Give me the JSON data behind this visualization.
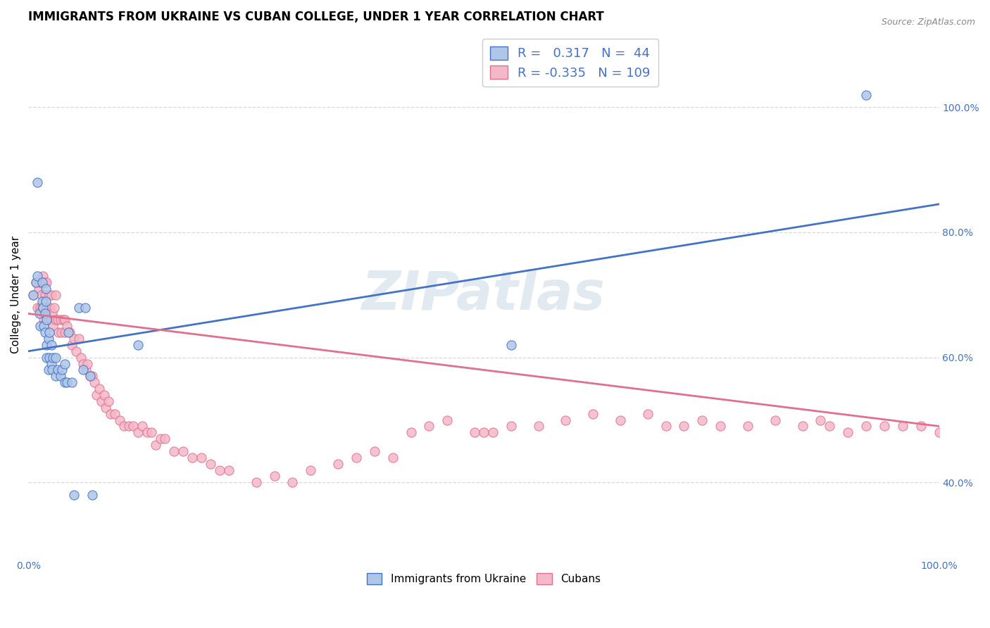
{
  "title": "IMMIGRANTS FROM UKRAINE VS CUBAN COLLEGE, UNDER 1 YEAR CORRELATION CHART",
  "source": "Source: ZipAtlas.com",
  "ylabel": "College, Under 1 year",
  "xlim": [
    0.0,
    1.0
  ],
  "ylim": [
    0.28,
    1.12
  ],
  "x_tick_labels": [
    "0.0%",
    "100.0%"
  ],
  "x_tick_positions": [
    0.0,
    1.0
  ],
  "y_tick_labels": [
    "40.0%",
    "60.0%",
    "80.0%",
    "100.0%"
  ],
  "y_tick_values": [
    0.4,
    0.6,
    0.8,
    1.0
  ],
  "legend_entries": [
    {
      "label": "R =   0.317   N =  44",
      "facecolor": "#aec6e8",
      "edgecolor": "#4472c4"
    },
    {
      "label": "R = -0.335   N = 109",
      "facecolor": "#f4b8c8",
      "edgecolor": "#e07090"
    }
  ],
  "ukraine_color": "#aec6e8",
  "ukraine_edge": "#4472c4",
  "cuba_color": "#f4b8c8",
  "cuba_edge": "#e07090",
  "ukraine_x": [
    0.005,
    0.008,
    0.01,
    0.01,
    0.012,
    0.013,
    0.015,
    0.015,
    0.016,
    0.017,
    0.018,
    0.018,
    0.019,
    0.019,
    0.02,
    0.02,
    0.02,
    0.022,
    0.022,
    0.023,
    0.023,
    0.025,
    0.025,
    0.026,
    0.027,
    0.03,
    0.03,
    0.032,
    0.035,
    0.037,
    0.04,
    0.04,
    0.042,
    0.044,
    0.048,
    0.05,
    0.055,
    0.06,
    0.062,
    0.068,
    0.07,
    0.12,
    0.53,
    0.92
  ],
  "ukraine_y": [
    0.7,
    0.72,
    0.73,
    0.88,
    0.67,
    0.65,
    0.69,
    0.72,
    0.68,
    0.65,
    0.64,
    0.67,
    0.69,
    0.71,
    0.66,
    0.62,
    0.6,
    0.63,
    0.58,
    0.64,
    0.6,
    0.59,
    0.62,
    0.58,
    0.6,
    0.57,
    0.6,
    0.58,
    0.57,
    0.58,
    0.56,
    0.59,
    0.56,
    0.64,
    0.56,
    0.38,
    0.68,
    0.58,
    0.68,
    0.57,
    0.38,
    0.62,
    0.62,
    1.02
  ],
  "cuba_x": [
    0.005,
    0.008,
    0.01,
    0.011,
    0.012,
    0.013,
    0.014,
    0.015,
    0.015,
    0.016,
    0.017,
    0.018,
    0.018,
    0.019,
    0.02,
    0.02,
    0.021,
    0.022,
    0.022,
    0.023,
    0.024,
    0.025,
    0.025,
    0.026,
    0.027,
    0.028,
    0.03,
    0.03,
    0.032,
    0.033,
    0.035,
    0.036,
    0.038,
    0.04,
    0.04,
    0.042,
    0.045,
    0.048,
    0.05,
    0.052,
    0.055,
    0.058,
    0.06,
    0.063,
    0.065,
    0.068,
    0.07,
    0.072,
    0.075,
    0.078,
    0.08,
    0.083,
    0.085,
    0.088,
    0.09,
    0.095,
    0.1,
    0.105,
    0.11,
    0.115,
    0.12,
    0.125,
    0.13,
    0.135,
    0.14,
    0.145,
    0.15,
    0.16,
    0.17,
    0.18,
    0.19,
    0.2,
    0.21,
    0.22,
    0.25,
    0.27,
    0.29,
    0.31,
    0.34,
    0.36,
    0.38,
    0.4,
    0.42,
    0.44,
    0.46,
    0.5,
    0.53,
    0.56,
    0.59,
    0.62,
    0.65,
    0.68,
    0.7,
    0.72,
    0.74,
    0.76,
    0.79,
    0.82,
    0.85,
    0.87,
    0.88,
    0.9,
    0.92,
    0.94,
    0.96,
    0.98,
    1.0,
    0.49,
    0.51
  ],
  "cuba_y": [
    0.7,
    0.72,
    0.68,
    0.71,
    0.72,
    0.68,
    0.7,
    0.68,
    0.72,
    0.73,
    0.66,
    0.7,
    0.72,
    0.67,
    0.72,
    0.68,
    0.68,
    0.66,
    0.68,
    0.7,
    0.68,
    0.66,
    0.7,
    0.67,
    0.65,
    0.68,
    0.66,
    0.7,
    0.66,
    0.64,
    0.66,
    0.64,
    0.66,
    0.64,
    0.66,
    0.65,
    0.64,
    0.62,
    0.63,
    0.61,
    0.63,
    0.6,
    0.59,
    0.58,
    0.59,
    0.57,
    0.57,
    0.56,
    0.54,
    0.55,
    0.53,
    0.54,
    0.52,
    0.53,
    0.51,
    0.51,
    0.5,
    0.49,
    0.49,
    0.49,
    0.48,
    0.49,
    0.48,
    0.48,
    0.46,
    0.47,
    0.47,
    0.45,
    0.45,
    0.44,
    0.44,
    0.43,
    0.42,
    0.42,
    0.4,
    0.41,
    0.4,
    0.42,
    0.43,
    0.44,
    0.45,
    0.44,
    0.48,
    0.49,
    0.5,
    0.48,
    0.49,
    0.49,
    0.5,
    0.51,
    0.5,
    0.51,
    0.49,
    0.49,
    0.5,
    0.49,
    0.49,
    0.5,
    0.49,
    0.5,
    0.49,
    0.48,
    0.49,
    0.49,
    0.49,
    0.49,
    0.48,
    0.48,
    0.48
  ],
  "ukraine_trend_x": [
    0.0,
    1.0
  ],
  "ukraine_trend_y": [
    0.61,
    0.845
  ],
  "cuba_trend_x": [
    0.0,
    1.0
  ],
  "cuba_trend_y": [
    0.67,
    0.49
  ],
  "trend_blue": "#4472c4",
  "trend_pink": "#e07090",
  "watermark": "ZIPatlas",
  "bg_color": "#ffffff",
  "grid_color": "#d8d8d8",
  "title_fontsize": 12,
  "axis_label_fontsize": 11,
  "tick_fontsize": 10,
  "blue_color": "#4472c4"
}
